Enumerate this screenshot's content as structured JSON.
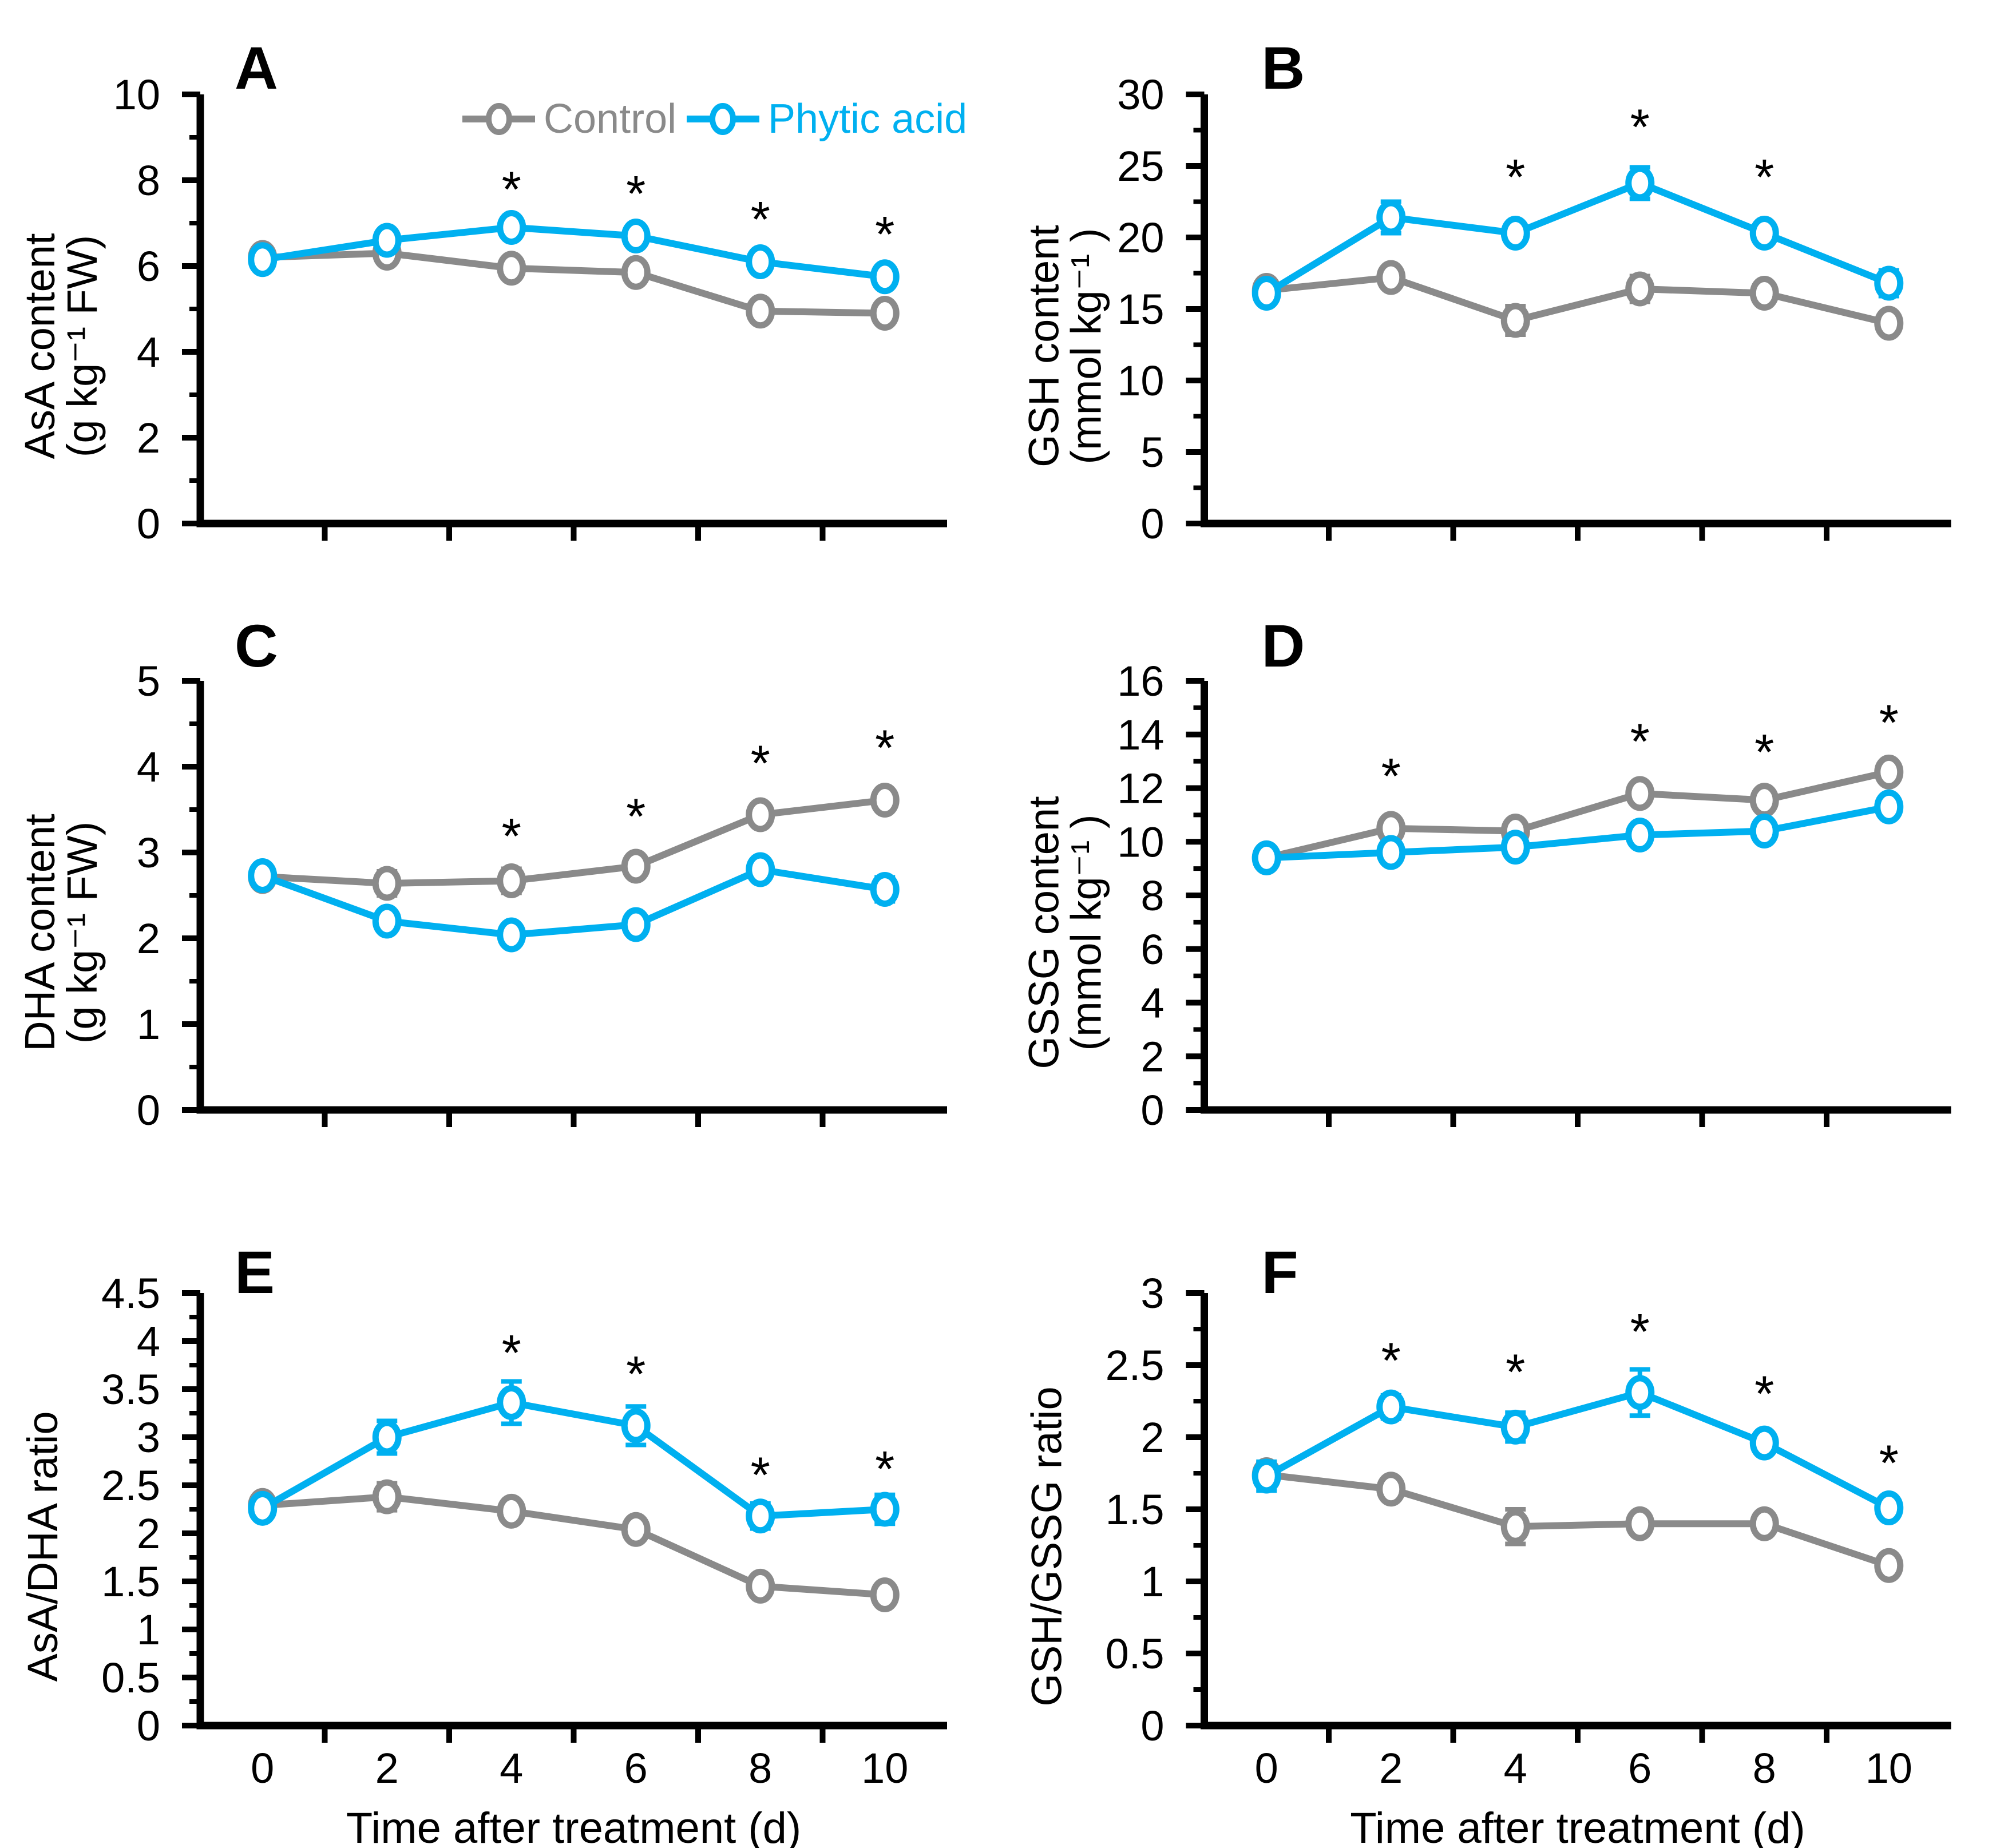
{
  "figure": {
    "series_colors": {
      "control": "#8a8a8a",
      "phytic": "#00b0f0"
    },
    "axis_color": "#000000",
    "background": "#ffffff",
    "significance_marker": "*",
    "legend": {
      "items": [
        {
          "series": "control",
          "label": "Control"
        },
        {
          "series": "phytic",
          "label": "Phytic acid"
        }
      ]
    },
    "x_axis": {
      "label": "Time after treatment (d)",
      "categories": [
        0,
        2,
        4,
        6,
        8,
        10
      ]
    },
    "panel_letters": [
      "A",
      "B",
      "C",
      "D",
      "E",
      "F"
    ]
  },
  "chart_data": [
    {
      "panel": "A",
      "type": "line",
      "ylabel_lines": [
        "AsA content",
        "(g kg⁻¹ FW)"
      ],
      "ylim": [
        0,
        10
      ],
      "yticks": [
        0,
        2,
        4,
        6,
        8,
        10
      ],
      "x": [
        0,
        2,
        4,
        6,
        8,
        10
      ],
      "series": [
        {
          "name": "Control",
          "key": "control",
          "values": [
            6.2,
            6.3,
            5.95,
            5.85,
            4.95,
            4.9
          ],
          "errors": [
            0.12,
            0.1,
            0.1,
            0.1,
            0.1,
            0.1
          ]
        },
        {
          "name": "Phytic acid",
          "key": "phytic",
          "values": [
            6.15,
            6.6,
            6.9,
            6.7,
            6.1,
            5.75
          ],
          "errors": [
            0.15,
            0.12,
            0.12,
            0.12,
            0.15,
            0.2
          ]
        }
      ],
      "significance": [
        {
          "day": 4,
          "y": 7.95
        },
        {
          "day": 6,
          "y": 7.85
        },
        {
          "day": 8,
          "y": 7.25
        },
        {
          "day": 10,
          "y": 6.9
        }
      ],
      "show_x_tick_labels": false,
      "xlabel": "",
      "has_legend": true
    },
    {
      "panel": "B",
      "type": "line",
      "ylabel_lines": [
        "GSH content",
        "(mmol kg⁻¹ )"
      ],
      "ylim": [
        0,
        30
      ],
      "yticks": [
        0,
        5,
        10,
        15,
        20,
        25,
        30
      ],
      "x": [
        0,
        2,
        4,
        6,
        8,
        10
      ],
      "series": [
        {
          "name": "Control",
          "key": "control",
          "values": [
            16.3,
            17.2,
            14.2,
            16.4,
            16.1,
            14.0
          ],
          "errors": [
            0.5,
            0.6,
            1.0,
            0.9,
            0.5,
            0.4
          ]
        },
        {
          "name": "Phytic acid",
          "key": "phytic",
          "values": [
            16.1,
            21.4,
            20.3,
            23.8,
            20.3,
            16.8
          ],
          "errors": [
            0.6,
            1.1,
            0.7,
            1.1,
            0.6,
            0.9
          ]
        }
      ],
      "significance": [
        {
          "day": 4,
          "y": 24.7
        },
        {
          "day": 6,
          "y": 28.2
        },
        {
          "day": 8,
          "y": 24.7
        }
      ],
      "show_x_tick_labels": false,
      "xlabel": "",
      "has_legend": false
    },
    {
      "panel": "C",
      "type": "line",
      "ylabel_lines": [
        "DHA content",
        "(g kg⁻¹ FW)"
      ],
      "ylim": [
        0,
        5
      ],
      "yticks": [
        0,
        1,
        2,
        3,
        4,
        5
      ],
      "x": [
        0,
        2,
        4,
        6,
        8,
        10
      ],
      "series": [
        {
          "name": "Control",
          "key": "control",
          "values": [
            2.72,
            2.64,
            2.67,
            2.84,
            3.44,
            3.61
          ],
          "errors": [
            0.12,
            0.14,
            0.14,
            0.1,
            0.07,
            0.1
          ]
        },
        {
          "name": "Phytic acid",
          "key": "phytic",
          "values": [
            2.73,
            2.2,
            2.04,
            2.16,
            2.8,
            2.57
          ],
          "errors": [
            0.08,
            0.08,
            0.07,
            0.08,
            0.07,
            0.14
          ]
        }
      ],
      "significance": [
        {
          "day": 4,
          "y": 3.27
        },
        {
          "day": 6,
          "y": 3.5
        },
        {
          "day": 8,
          "y": 4.12
        },
        {
          "day": 10,
          "y": 4.3
        }
      ],
      "show_x_tick_labels": false,
      "xlabel": "",
      "has_legend": false
    },
    {
      "panel": "D",
      "type": "line",
      "ylabel_lines": [
        "GSSG content",
        "(mmol kg⁻¹ )"
      ],
      "ylim": [
        0,
        16
      ],
      "yticks": [
        0,
        2,
        4,
        6,
        8,
        10,
        12,
        14,
        16
      ],
      "x": [
        0,
        2,
        4,
        6,
        8,
        10
      ],
      "series": [
        {
          "name": "Control",
          "key": "control",
          "values": [
            9.4,
            10.5,
            10.4,
            11.8,
            11.55,
            12.6
          ],
          "errors": [
            0.2,
            0.35,
            0.3,
            0.25,
            0.35,
            0.35
          ]
        },
        {
          "name": "Phytic acid",
          "key": "phytic",
          "values": [
            9.4,
            9.6,
            9.8,
            10.25,
            10.4,
            11.3
          ],
          "errors": [
            0.2,
            0.3,
            0.3,
            0.25,
            0.3,
            0.35
          ]
        }
      ],
      "significance": [
        {
          "day": 2,
          "y": 12.7
        },
        {
          "day": 6,
          "y": 14.0
        },
        {
          "day": 8,
          "y": 13.6
        },
        {
          "day": 10,
          "y": 14.7
        }
      ],
      "show_x_tick_labels": false,
      "xlabel": "",
      "has_legend": false
    },
    {
      "panel": "E",
      "type": "line",
      "ylabel_lines": [
        "AsA/DHA ratio"
      ],
      "ylim": [
        0,
        4.5
      ],
      "yticks": [
        0,
        0.5,
        1,
        1.5,
        2,
        2.5,
        3,
        3.5,
        4,
        4.5
      ],
      "x": [
        0,
        2,
        4,
        6,
        8,
        10
      ],
      "series": [
        {
          "name": "Control",
          "key": "control",
          "values": [
            2.29,
            2.38,
            2.23,
            2.04,
            1.45,
            1.36
          ],
          "errors": [
            0.08,
            0.14,
            0.06,
            0.06,
            0.05,
            0.05
          ]
        },
        {
          "name": "Phytic acid",
          "key": "phytic",
          "values": [
            2.26,
            3.0,
            3.36,
            3.12,
            2.18,
            2.25
          ],
          "errors": [
            0.1,
            0.17,
            0.22,
            0.2,
            0.13,
            0.15
          ]
        }
      ],
      "significance": [
        {
          "day": 4,
          "y": 3.95
        },
        {
          "day": 6,
          "y": 3.73
        },
        {
          "day": 8,
          "y": 2.68
        },
        {
          "day": 10,
          "y": 2.74
        }
      ],
      "show_x_tick_labels": true,
      "xlabel": "Time after treatment (d)",
      "has_legend": false
    },
    {
      "panel": "F",
      "type": "line",
      "ylabel_lines": [
        "GSH/GSSG ratio"
      ],
      "ylim": [
        0,
        3
      ],
      "yticks": [
        0,
        0.5,
        1,
        1.5,
        2,
        2.5,
        3
      ],
      "x": [
        0,
        2,
        4,
        6,
        8,
        10
      ],
      "series": [
        {
          "name": "Control",
          "key": "control",
          "values": [
            1.74,
            1.64,
            1.38,
            1.4,
            1.4,
            1.11
          ],
          "errors": [
            0.08,
            0.05,
            0.12,
            0.05,
            0.05,
            0.04
          ]
        },
        {
          "name": "Phytic acid",
          "key": "phytic",
          "values": [
            1.73,
            2.21,
            2.07,
            2.31,
            1.96,
            1.51
          ],
          "errors": [
            0.1,
            0.08,
            0.1,
            0.16,
            0.07,
            0.06
          ]
        }
      ],
      "significance": [
        {
          "day": 2,
          "y": 2.58
        },
        {
          "day": 4,
          "y": 2.5
        },
        {
          "day": 6,
          "y": 2.78
        },
        {
          "day": 8,
          "y": 2.35
        },
        {
          "day": 10,
          "y": 1.87
        }
      ],
      "show_x_tick_labels": true,
      "xlabel": "Time after treatment (d)",
      "has_legend": false
    }
  ]
}
